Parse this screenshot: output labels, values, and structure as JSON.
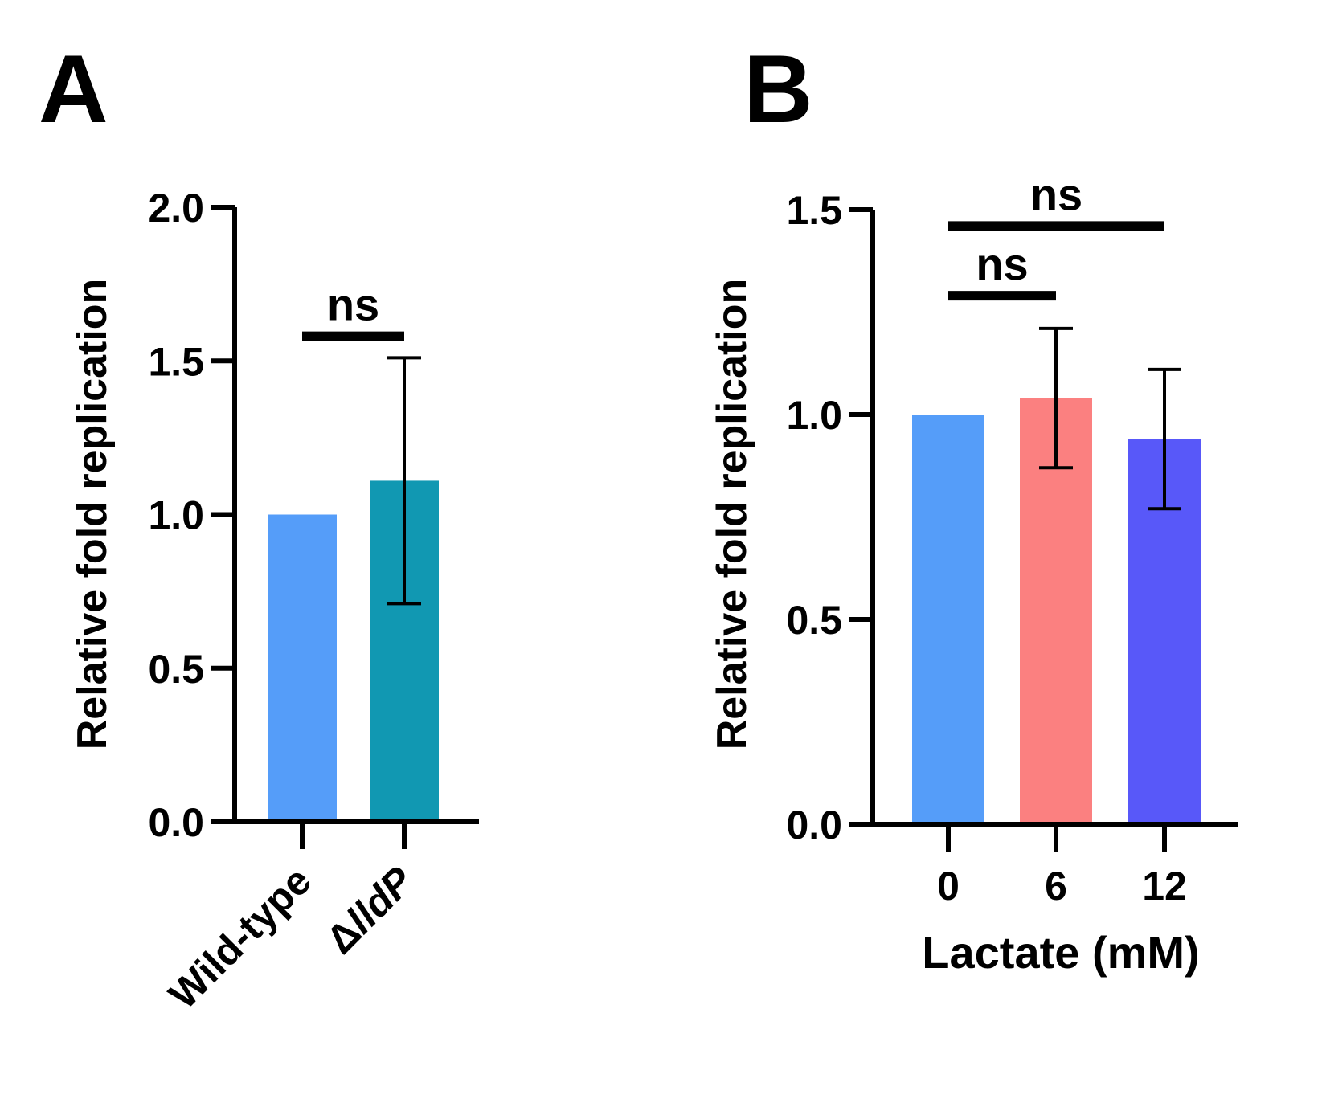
{
  "chart_data": [
    {
      "panel": "A",
      "type": "bar",
      "categories": [
        "Wild-type",
        "ΔlldP"
      ],
      "values": [
        1.0,
        1.11
      ],
      "error": [
        null,
        0.4
      ],
      "colors": [
        "#559DF9",
        "#1198B2"
      ],
      "xlabel": "",
      "ylabel": "Relative fold replication",
      "ylim": [
        0,
        2.0
      ],
      "yticks": [
        0.0,
        0.5,
        1.0,
        1.5,
        2.0
      ],
      "ytick_labels": [
        "0.0",
        "0.5",
        "1.0",
        "1.5",
        "2.0"
      ],
      "grid": false,
      "annotations": [
        {
          "label": "ns",
          "from": 0,
          "to": 1,
          "y": 1.58
        }
      ]
    },
    {
      "panel": "B",
      "type": "bar",
      "categories": [
        "0",
        "6",
        "12"
      ],
      "values": [
        1.0,
        1.04,
        0.94
      ],
      "error": [
        null,
        0.17,
        0.17
      ],
      "colors": [
        "#559DF9",
        "#FB8080",
        "#5858F9"
      ],
      "xlabel": "Lactate (mM)",
      "ylabel": "Relative fold replication",
      "ylim": [
        0,
        1.5
      ],
      "yticks": [
        0.0,
        0.5,
        1.0,
        1.5
      ],
      "ytick_labels": [
        "0.0",
        "0.5",
        "1.0",
        "1.5"
      ],
      "grid": false,
      "annotations": [
        {
          "label": "ns",
          "from": 0,
          "to": 1,
          "y": 1.29
        },
        {
          "label": "ns",
          "from": 0,
          "to": 2,
          "y": 1.46
        }
      ]
    }
  ]
}
